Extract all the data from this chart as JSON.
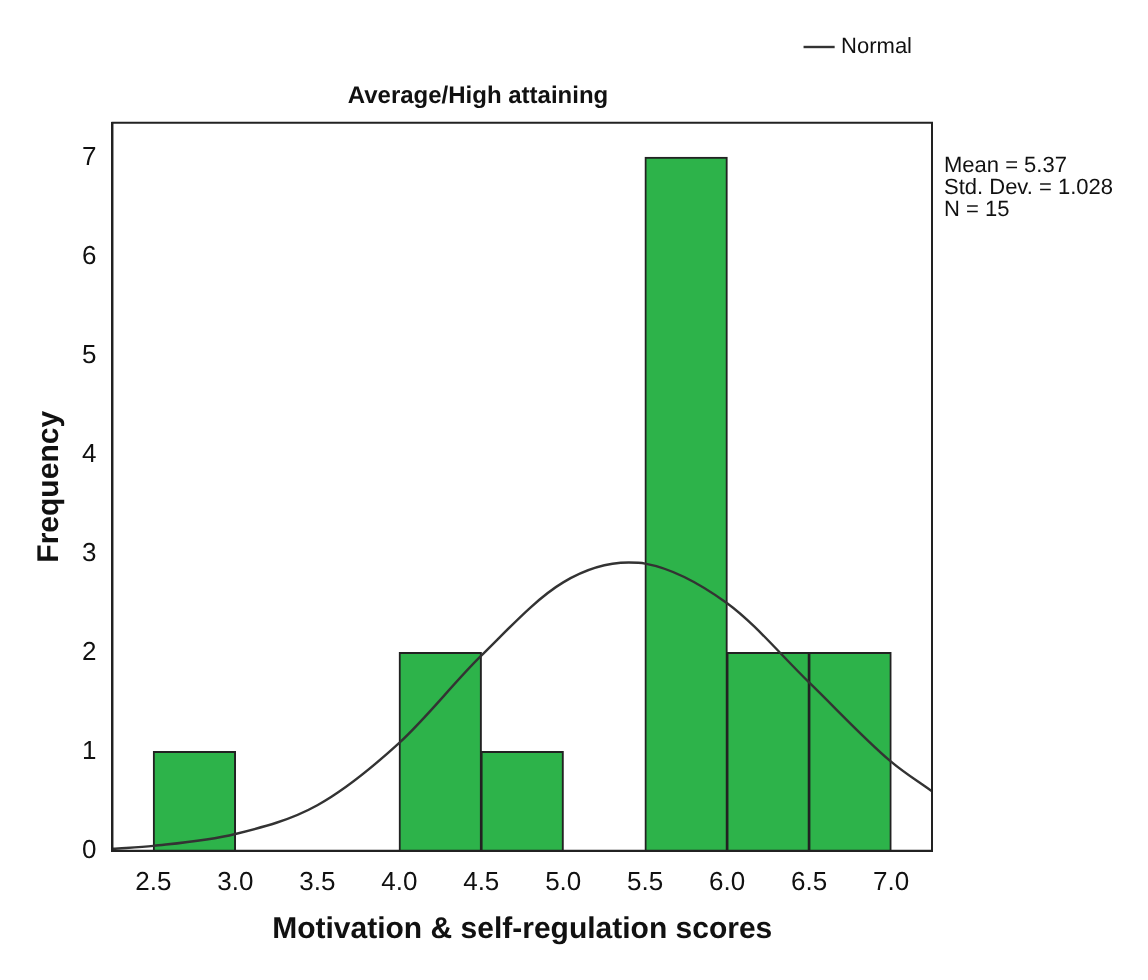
{
  "chart_data": {
    "type": "histogram",
    "title": "Average/High attaining",
    "xlabel": "Motivation & self-regulation scores",
    "ylabel": "Frequency",
    "bins": [
      2.5,
      3.0,
      3.5,
      4.0,
      4.5,
      5.0,
      5.5,
      6.0,
      6.5,
      7.0
    ],
    "values": [
      1,
      0,
      0,
      2,
      1,
      0,
      7,
      2,
      2
    ],
    "color": "#2db34a",
    "series": [
      {
        "type": "line",
        "name": "Normal",
        "color": "#333333",
        "x": [
          2.25,
          2.5,
          3.0,
          3.5,
          4.0,
          4.5,
          5.0,
          5.4,
          5.5,
          6.0,
          6.5,
          7.0,
          7.25
        ],
        "values": [
          0.02,
          0.05,
          0.17,
          0.46,
          1.09,
          1.97,
          2.71,
          2.91,
          2.9,
          2.5,
          1.7,
          0.9,
          0.6
        ]
      }
    ],
    "xlim": [
      2.25,
      7.25
    ],
    "ylim": [
      0,
      7.35
    ],
    "xticks": [
      {
        "value": 2.5,
        "label": "2.5"
      },
      {
        "value": 3.0,
        "label": "3.0"
      },
      {
        "value": 3.5,
        "label": "3.5"
      },
      {
        "value": 4.0,
        "label": "4.0"
      },
      {
        "value": 4.5,
        "label": "4.5"
      },
      {
        "value": 5.0,
        "label": "5.0"
      },
      {
        "value": 5.5,
        "label": "5.5"
      },
      {
        "value": 6.0,
        "label": "6.0"
      },
      {
        "value": 6.5,
        "label": "6.5"
      },
      {
        "value": 7.0,
        "label": "7.0"
      }
    ],
    "yticks": [
      0,
      1,
      2,
      3,
      4,
      5,
      6,
      7
    ],
    "grid": false,
    "legend": "top right",
    "marker": "none",
    "annotations": [
      "Mean = 5.37",
      "Std. Dev. = 1.028",
      "N = 15"
    ]
  }
}
